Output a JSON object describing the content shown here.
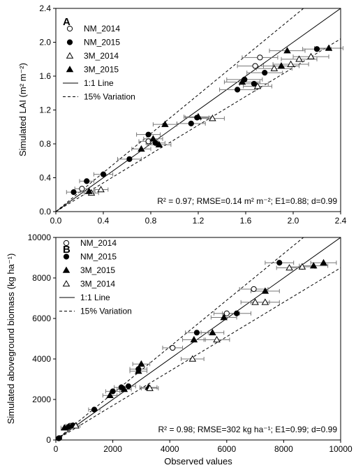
{
  "chart_data": [
    {
      "type": "scatter",
      "panel_label": "A",
      "ylabel": "Simulated LAI (m² m⁻²)",
      "xlabel": "",
      "xlim": [
        0,
        2.4
      ],
      "ylim": [
        0,
        2.4
      ],
      "xticks": [
        "0.0",
        "0.4",
        "0.8",
        "1.2",
        "1.6",
        "2.0",
        "2.4"
      ],
      "yticks": [
        "0.0",
        "0.4",
        "0.8",
        "1.2",
        "1.6",
        "2.0",
        "2.4"
      ],
      "grid": false,
      "legend_position": "top-left",
      "legend": [
        {
          "label": "NM_2014",
          "marker": "circle-open"
        },
        {
          "label": "NM_2015",
          "marker": "circle-filled"
        },
        {
          "label": "3M_2014",
          "marker": "triangle-open"
        },
        {
          "label": "3M_2015",
          "marker": "triangle-filled"
        },
        {
          "label": "1:1 Line",
          "marker": "solid-line"
        },
        {
          "label": "15% Variation",
          "marker": "dashed-line"
        }
      ],
      "stats": "R² = 0.97; RMSE=0.14 m² m⁻²; E1=0.88; d=0.99",
      "series": [
        {
          "name": "NM_2014",
          "marker": "circle-open",
          "points": [
            {
              "x": 0.22,
              "y": 0.27,
              "xerr": 0.06
            },
            {
              "x": 0.78,
              "y": 0.83,
              "xerr": 0.08
            },
            {
              "x": 1.68,
              "y": 1.72,
              "xerr": 0.15
            },
            {
              "x": 1.72,
              "y": 1.82,
              "xerr": 0.15
            }
          ]
        },
        {
          "name": "NM_2015",
          "marker": "circle-filled",
          "points": [
            {
              "x": 0.15,
              "y": 0.23,
              "xerr": 0.06
            },
            {
              "x": 0.26,
              "y": 0.36,
              "xerr": 0.06
            },
            {
              "x": 0.4,
              "y": 0.44,
              "xerr": 0.08
            },
            {
              "x": 0.62,
              "y": 0.62,
              "xerr": 0.1
            },
            {
              "x": 0.78,
              "y": 0.91,
              "xerr": 0.1
            },
            {
              "x": 0.84,
              "y": 0.81,
              "xerr": 0.08
            },
            {
              "x": 1.14,
              "y": 1.04,
              "xerr": 0.12
            },
            {
              "x": 1.19,
              "y": 1.11,
              "xerr": 0.1
            },
            {
              "x": 1.53,
              "y": 1.44,
              "xerr": 0.15
            },
            {
              "x": 1.59,
              "y": 1.56,
              "xerr": 0.15
            },
            {
              "x": 1.67,
              "y": 1.51,
              "xerr": 0.12
            },
            {
              "x": 1.76,
              "y": 1.64,
              "xerr": 0.15
            },
            {
              "x": 2.2,
              "y": 1.92,
              "xerr": 0.12
            }
          ]
        },
        {
          "name": "3M_2014",
          "marker": "triangle-open",
          "points": [
            {
              "x": 0.3,
              "y": 0.22,
              "xerr": 0.06
            },
            {
              "x": 0.38,
              "y": 0.26,
              "xerr": 0.06
            },
            {
              "x": 1.32,
              "y": 1.1,
              "xerr": 0.1
            },
            {
              "x": 1.7,
              "y": 1.48,
              "xerr": 0.12
            },
            {
              "x": 1.84,
              "y": 1.69,
              "xerr": 0.15
            },
            {
              "x": 1.98,
              "y": 1.74,
              "xerr": 0.15
            },
            {
              "x": 2.05,
              "y": 1.8,
              "xerr": 0.15
            },
            {
              "x": 2.15,
              "y": 1.83,
              "xerr": 0.15
            }
          ]
        },
        {
          "name": "3M_2015",
          "marker": "triangle-filled",
          "points": [
            {
              "x": 0.28,
              "y": 0.24,
              "xerr": 0.05
            },
            {
              "x": 0.72,
              "y": 0.74,
              "xerr": 0.08
            },
            {
              "x": 0.82,
              "y": 0.86,
              "xerr": 0.08
            },
            {
              "x": 0.87,
              "y": 0.79,
              "xerr": 0.1
            },
            {
              "x": 0.92,
              "y": 1.03,
              "xerr": 0.1
            },
            {
              "x": 1.2,
              "y": 1.12,
              "xerr": 0.12
            },
            {
              "x": 1.57,
              "y": 1.53,
              "xerr": 0.15
            },
            {
              "x": 1.9,
              "y": 1.72,
              "xerr": 0.15
            },
            {
              "x": 1.95,
              "y": 1.9,
              "xerr": 0.15
            },
            {
              "x": 2.3,
              "y": 1.93,
              "xerr": 0.12
            }
          ]
        }
      ]
    },
    {
      "type": "scatter",
      "panel_label": "B",
      "ylabel": "Simulated aboveground biomass (kg ha⁻¹)",
      "xlabel": "Observed values",
      "xlim": [
        0,
        10000
      ],
      "ylim": [
        0,
        10000
      ],
      "xticks": [
        "0",
        "2000",
        "4000",
        "6000",
        "8000",
        "10000"
      ],
      "yticks": [
        "0",
        "2000",
        "4000",
        "6000",
        "8000",
        "10000"
      ],
      "grid": false,
      "legend_position": "top-left",
      "legend": [
        {
          "label": "NM_2014",
          "marker": "circle-open"
        },
        {
          "label": "NM_2015",
          "marker": "circle-filled"
        },
        {
          "label": "3M_2015",
          "marker": "triangle-filled"
        },
        {
          "label": "3M_2014",
          "marker": "triangle-open"
        },
        {
          "label": "1:1 Line",
          "marker": "solid-line"
        },
        {
          "label": "15% Variation",
          "marker": "dashed-line"
        }
      ],
      "stats": "R² = 0.98; RMSE=302 kg ha⁻¹; E1=0.99; d=0.99",
      "series": [
        {
          "name": "NM_2014",
          "marker": "circle-open",
          "points": [
            {
              "x": 100,
              "y": 80,
              "xerr": 60
            },
            {
              "x": 500,
              "y": 700,
              "xerr": 150
            },
            {
              "x": 4100,
              "y": 4550,
              "xerr": 350
            },
            {
              "x": 6000,
              "y": 6250,
              "xerr": 450
            },
            {
              "x": 6950,
              "y": 7450,
              "xerr": 500
            }
          ]
        },
        {
          "name": "NM_2015",
          "marker": "circle-filled",
          "points": [
            {
              "x": 120,
              "y": 90,
              "xerr": 60
            },
            {
              "x": 450,
              "y": 650,
              "xerr": 120
            },
            {
              "x": 600,
              "y": 720,
              "xerr": 150
            },
            {
              "x": 1350,
              "y": 1500,
              "xerr": 200
            },
            {
              "x": 2000,
              "y": 2400,
              "xerr": 250
            },
            {
              "x": 2300,
              "y": 2600,
              "xerr": 250
            },
            {
              "x": 2550,
              "y": 2650,
              "xerr": 250
            },
            {
              "x": 2900,
              "y": 3500,
              "xerr": 300
            },
            {
              "x": 4950,
              "y": 5300,
              "xerr": 400
            },
            {
              "x": 6350,
              "y": 6250,
              "xerr": 500
            },
            {
              "x": 7850,
              "y": 8750,
              "xerr": 500
            }
          ]
        },
        {
          "name": "3M_2015",
          "marker": "triangle-filled",
          "points": [
            {
              "x": 300,
              "y": 600,
              "xerr": 120
            },
            {
              "x": 1900,
              "y": 2200,
              "xerr": 250
            },
            {
              "x": 2400,
              "y": 2500,
              "xerr": 250
            },
            {
              "x": 2900,
              "y": 3400,
              "xerr": 300
            },
            {
              "x": 3000,
              "y": 3750,
              "xerr": 300
            },
            {
              "x": 3250,
              "y": 2600,
              "xerr": 300
            },
            {
              "x": 4850,
              "y": 4950,
              "xerr": 400
            },
            {
              "x": 5500,
              "y": 5300,
              "xerr": 400
            },
            {
              "x": 5900,
              "y": 6050,
              "xerr": 450
            },
            {
              "x": 7350,
              "y": 7350,
              "xerr": 500
            },
            {
              "x": 9050,
              "y": 8600,
              "xerr": 500
            },
            {
              "x": 9400,
              "y": 8750,
              "xerr": 450
            }
          ]
        },
        {
          "name": "3M_2014",
          "marker": "triangle-open",
          "points": [
            {
              "x": 700,
              "y": 700,
              "xerr": 150
            },
            {
              "x": 3300,
              "y": 2550,
              "xerr": 300
            },
            {
              "x": 4800,
              "y": 4000,
              "xerr": 400
            },
            {
              "x": 5650,
              "y": 4950,
              "xerr": 450
            },
            {
              "x": 7000,
              "y": 6800,
              "xerr": 500
            },
            {
              "x": 7350,
              "y": 6800,
              "xerr": 500
            },
            {
              "x": 8200,
              "y": 8500,
              "xerr": 450
            },
            {
              "x": 8650,
              "y": 8550,
              "xerr": 450
            }
          ]
        }
      ]
    }
  ]
}
